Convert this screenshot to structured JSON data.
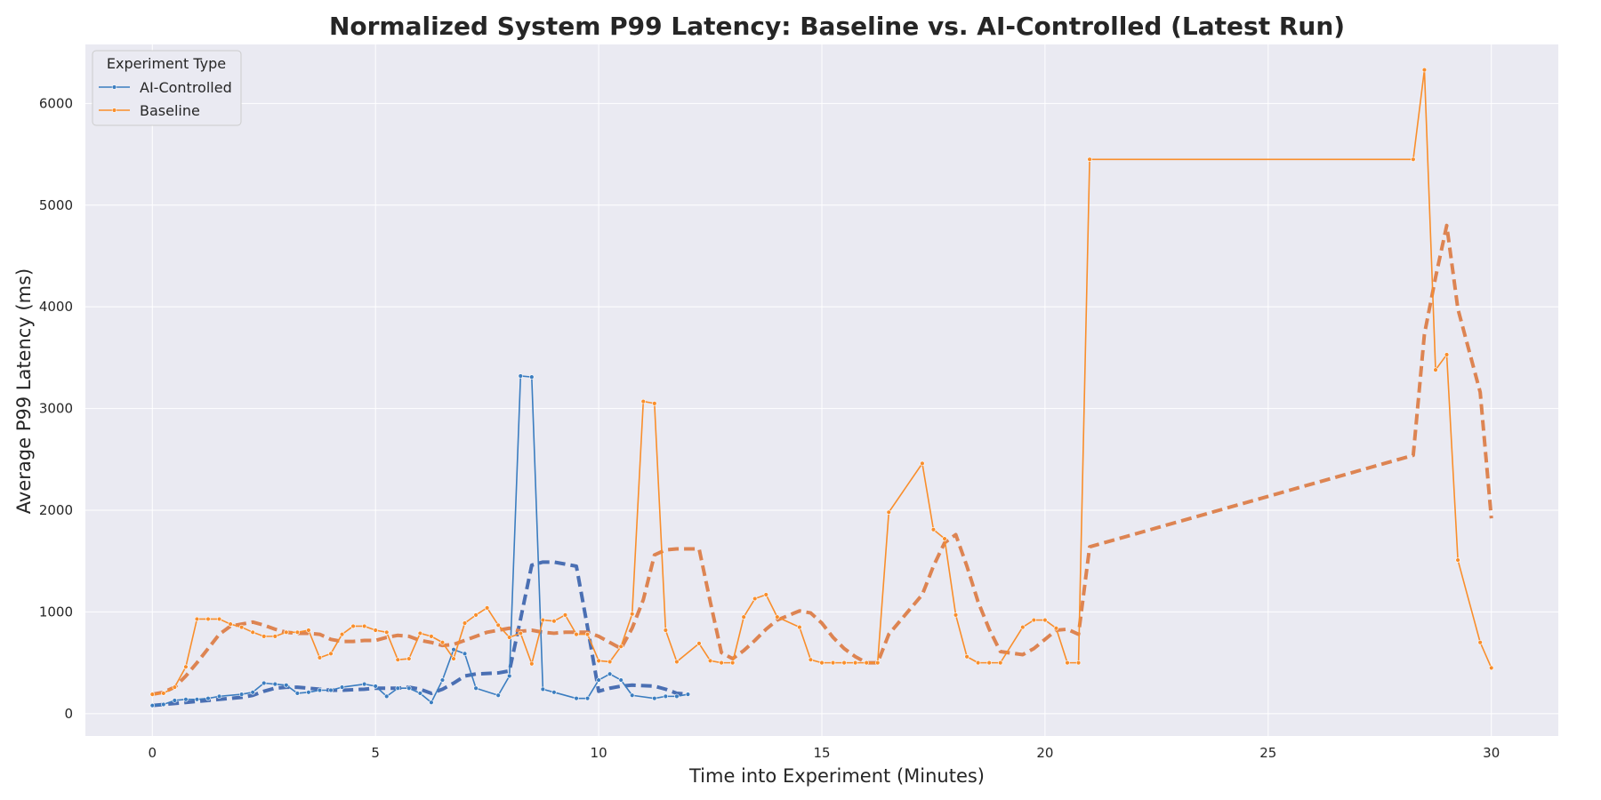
{
  "chart_data": {
    "type": "line",
    "title": "Normalized System P99 Latency: Baseline vs. AI-Controlled (Latest Run)",
    "xlabel": "Time into Experiment (Minutes)",
    "ylabel": "Average P99 Latency (ms)",
    "xlim": [
      -1.5,
      31.5
    ],
    "ylim": [
      -220,
      6580
    ],
    "x_ticks": [
      0,
      5,
      10,
      15,
      20,
      25,
      30
    ],
    "y_ticks": [
      0,
      1000,
      2000,
      3000,
      4000,
      5000,
      6000
    ],
    "grid": true,
    "legend": {
      "title": "Experiment Type",
      "placement": "top-left",
      "entries": [
        "AI-Controlled",
        "Baseline"
      ]
    },
    "colors": {
      "ai_controlled": "#3b7dc0",
      "baseline": "#f98e2b",
      "ai_trend": "#4a6fb3",
      "baseline_trend": "#dd8452",
      "plot_background": "#eaeaf2",
      "grid": "#ffffff"
    },
    "series": [
      {
        "name": "AI-Controlled",
        "style": "solid-with-markers",
        "x": [
          0,
          0.25,
          0.5,
          0.75,
          1.0,
          1.25,
          1.5,
          2.0,
          2.25,
          2.5,
          2.75,
          3.0,
          3.25,
          3.5,
          3.75,
          4.0,
          4.25,
          4.75,
          5.0,
          5.25,
          5.5,
          5.75,
          6.0,
          6.25,
          6.5,
          6.75,
          7.0,
          7.25,
          7.75,
          8.0,
          8.25,
          8.5,
          8.75,
          9.0,
          9.5,
          9.75,
          10.0,
          10.25,
          10.5,
          10.75,
          11.25,
          11.5,
          11.75,
          12.0
        ],
        "y": [
          80,
          90,
          130,
          140,
          140,
          150,
          170,
          190,
          210,
          300,
          290,
          280,
          200,
          210,
          230,
          230,
          260,
          290,
          270,
          170,
          250,
          250,
          200,
          110,
          330,
          630,
          590,
          250,
          180,
          370,
          3320,
          3310,
          240,
          210,
          150,
          150,
          330,
          390,
          330,
          180,
          150,
          170,
          170,
          190
        ]
      },
      {
        "name": "Baseline",
        "style": "solid-with-markers",
        "x": [
          0,
          0.25,
          0.5,
          0.75,
          1.0,
          1.25,
          1.5,
          1.75,
          2.0,
          2.25,
          2.5,
          2.75,
          3.0,
          3.25,
          3.5,
          3.75,
          4.0,
          4.25,
          4.5,
          4.75,
          5.0,
          5.25,
          5.5,
          5.75,
          6.0,
          6.25,
          6.5,
          6.75,
          7.0,
          7.25,
          7.5,
          7.75,
          8.0,
          8.25,
          8.5,
          8.75,
          9.0,
          9.25,
          9.5,
          9.75,
          10.0,
          10.25,
          10.5,
          10.75,
          11.0,
          11.25,
          11.5,
          11.75,
          12.25,
          12.5,
          12.75,
          13.0,
          13.25,
          13.5,
          13.75,
          14.0,
          14.5,
          14.75,
          15.0,
          15.25,
          15.5,
          15.75,
          16.0,
          16.25,
          16.5,
          17.25,
          17.5,
          17.75,
          18.0,
          18.25,
          18.5,
          18.75,
          19.0,
          19.5,
          19.75,
          20.0,
          20.25,
          20.5,
          20.75,
          21.0,
          28.25,
          28.5,
          28.75,
          29.0,
          29.25,
          29.75,
          30.0
        ],
        "y": [
          190,
          200,
          260,
          460,
          930,
          930,
          930,
          880,
          850,
          800,
          760,
          760,
          800,
          800,
          820,
          550,
          590,
          780,
          860,
          860,
          820,
          800,
          530,
          540,
          790,
          760,
          700,
          540,
          890,
          970,
          1040,
          870,
          750,
          790,
          490,
          920,
          910,
          970,
          780,
          780,
          520,
          510,
          660,
          980,
          3070,
          3050,
          820,
          510,
          690,
          520,
          500,
          500,
          950,
          1130,
          1170,
          950,
          850,
          530,
          500,
          500,
          500,
          500,
          500,
          500,
          1980,
          2460,
          1810,
          1720,
          970,
          560,
          500,
          500,
          500,
          850,
          920,
          920,
          840,
          500,
          500,
          5450,
          5450,
          6330,
          3380,
          3530,
          1510,
          700,
          450
        ]
      },
      {
        "name": "",
        "style": "dashed-trend",
        "color_key": "ai_trend",
        "x": [
          0,
          0.25,
          0.5,
          0.75,
          1.0,
          1.25,
          1.5,
          2.0,
          2.25,
          2.5,
          2.75,
          3.0,
          3.25,
          3.5,
          3.75,
          4.0,
          4.25,
          4.75,
          5.0,
          5.25,
          5.5,
          5.75,
          6.0,
          6.25,
          6.5,
          6.75,
          7.0,
          7.25,
          7.75,
          8.0,
          8.25,
          8.5,
          8.75,
          9.0,
          9.5,
          9.75,
          10.0,
          10.25,
          10.5,
          10.75,
          11.25,
          11.5,
          11.75,
          12.0
        ],
        "y": [
          80,
          90,
          100,
          110,
          120,
          130,
          140,
          160,
          180,
          220,
          250,
          260,
          260,
          250,
          240,
          230,
          230,
          240,
          250,
          250,
          250,
          260,
          240,
          200,
          240,
          300,
          370,
          390,
          400,
          420,
          930,
          1460,
          1490,
          1490,
          1450,
          850,
          220,
          250,
          270,
          280,
          270,
          240,
          200,
          190
        ]
      },
      {
        "name": "",
        "style": "dashed-trend",
        "color_key": "baseline_trend",
        "x": [
          0,
          0.25,
          0.5,
          0.75,
          1.0,
          1.25,
          1.5,
          1.75,
          2.0,
          2.25,
          2.5,
          2.75,
          3.0,
          3.25,
          3.5,
          3.75,
          4.0,
          4.25,
          4.5,
          4.75,
          5.0,
          5.25,
          5.5,
          5.75,
          6.0,
          6.25,
          6.5,
          6.75,
          7.0,
          7.25,
          7.5,
          7.75,
          8.0,
          8.25,
          8.5,
          8.75,
          9.0,
          9.25,
          9.5,
          9.75,
          10.0,
          10.25,
          10.5,
          10.75,
          11.0,
          11.25,
          11.5,
          11.75,
          12.25,
          12.5,
          12.75,
          13.0,
          13.25,
          13.5,
          13.75,
          14.0,
          14.5,
          14.75,
          15.0,
          15.25,
          15.5,
          15.75,
          16.0,
          16.25,
          16.5,
          17.25,
          17.5,
          17.75,
          18.0,
          18.25,
          18.5,
          18.75,
          19.0,
          19.5,
          19.75,
          20.0,
          20.25,
          20.5,
          20.75,
          21.0,
          28.25,
          28.5,
          28.75,
          29.0,
          29.25,
          29.75,
          30.0
        ],
        "y": [
          190,
          210,
          260,
          370,
          500,
          640,
          780,
          860,
          880,
          900,
          870,
          830,
          800,
          790,
          790,
          780,
          730,
          710,
          710,
          720,
          720,
          750,
          770,
          760,
          720,
          700,
          670,
          680,
          720,
          760,
          800,
          820,
          840,
          810,
          820,
          800,
          790,
          800,
          800,
          800,
          760,
          700,
          640,
          840,
          1120,
          1560,
          1610,
          1620,
          1620,
          1100,
          600,
          540,
          620,
          720,
          830,
          920,
          1010,
          990,
          890,
          750,
          640,
          560,
          500,
          500,
          780,
          1170,
          1450,
          1680,
          1760,
          1450,
          1100,
          830,
          610,
          580,
          640,
          730,
          820,
          830,
          780,
          1640,
          2540,
          3730,
          4290,
          4800,
          3980,
          3160,
          1920
        ]
      }
    ]
  }
}
